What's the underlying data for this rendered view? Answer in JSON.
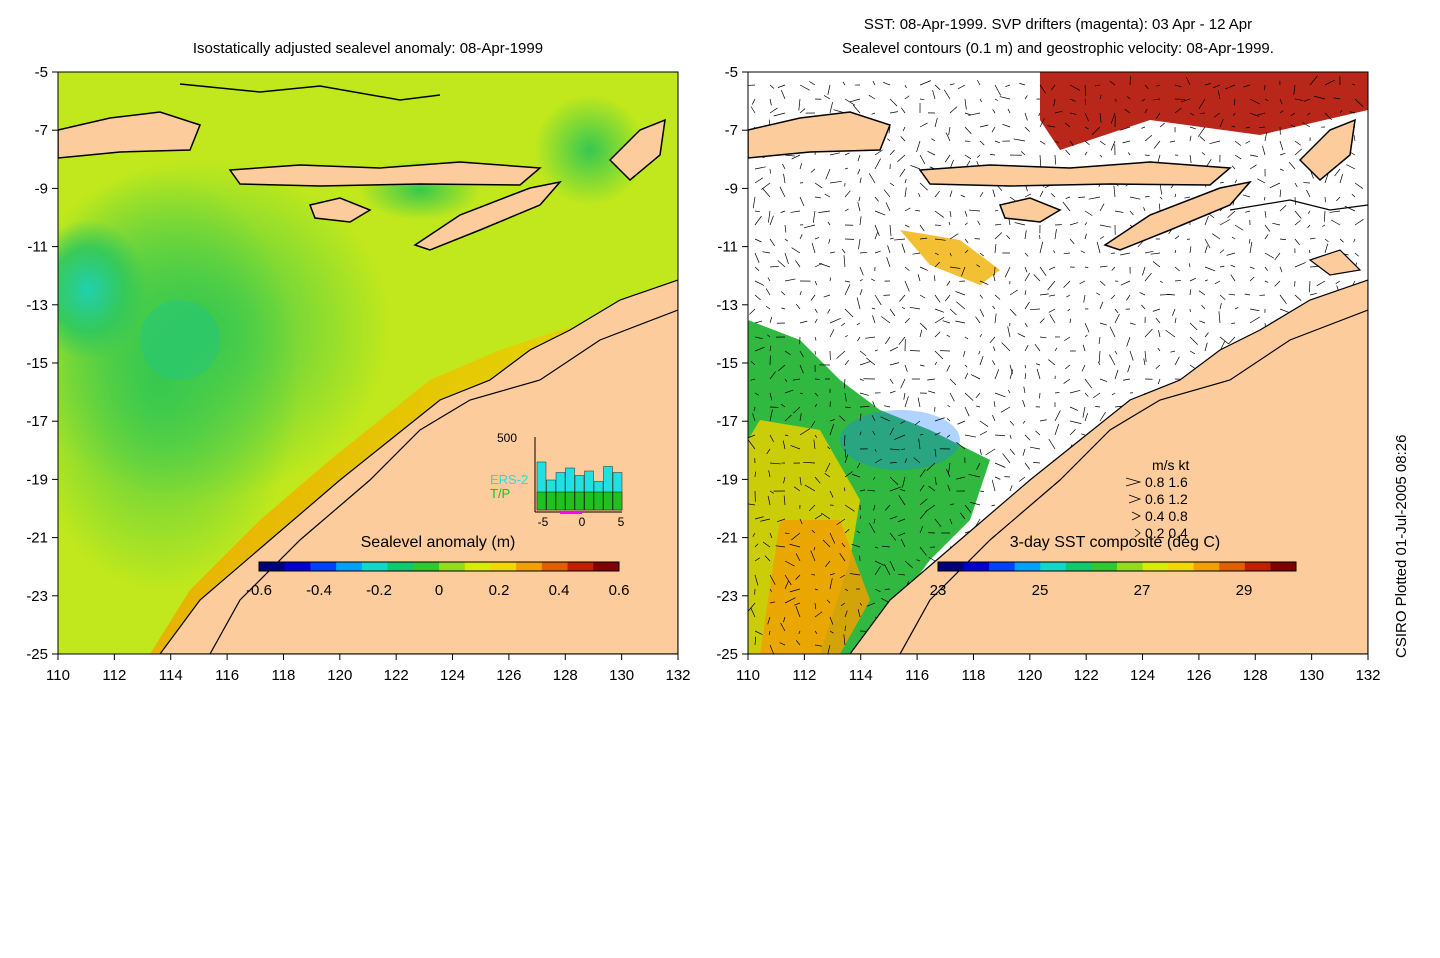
{
  "left_panel": {
    "title": "Isostatically adjusted sealevel anomaly: 08-Apr-1999",
    "colorbar": {
      "label": "Sealevel anomaly (m)",
      "ticks": [
        "-0.6",
        "-0.4",
        "-0.2",
        "0",
        "0.2",
        "0.4",
        "0.6"
      ],
      "colors": [
        "#00007a",
        "#0000d0",
        "#0040ff",
        "#00a0ff",
        "#10d8c8",
        "#10c870",
        "#30c830",
        "#90dc20",
        "#d8ec00",
        "#f0d800",
        "#f0a000",
        "#e06000",
        "#c02000",
        "#800000"
      ]
    },
    "inset": {
      "ymax_label": "500",
      "x_ticks": [
        "-5",
        "0",
        "5"
      ],
      "legend_ers2": "ERS-2",
      "legend_tp": "T/P",
      "ers2_color": "#20e0e0",
      "tp_color": "#20c020",
      "ers2_counts": [
        320,
        200,
        250,
        280,
        230,
        260,
        190,
        290,
        250
      ],
      "tp_counts": [
        120,
        120,
        120,
        120,
        120,
        120,
        120,
        120,
        120
      ]
    }
  },
  "right_panel": {
    "title_line1": "SST: 08-Apr-1999. SVP drifters (magenta): 03 Apr - 12 Apr",
    "title_line2": "Sealevel contours (0.1 m) and geostrophic velocity: 08-Apr-1999.",
    "colorbar": {
      "label": "3-day SST composite (deg C)",
      "ticks": [
        "23",
        "25",
        "27",
        "29"
      ],
      "colors": [
        "#00007a",
        "#0000d0",
        "#0040ff",
        "#00a0ff",
        "#10d8c8",
        "#10c870",
        "#30c830",
        "#90dc20",
        "#d8ec00",
        "#f0d800",
        "#f0a000",
        "#e06000",
        "#c02000",
        "#800000"
      ]
    },
    "speed_legend": {
      "header": "m/s  kt",
      "rows": [
        "0.8  1.6",
        "0.6  1.2",
        "0.4  0.8",
        "0.2  0.4"
      ]
    }
  },
  "axes": {
    "x_ticks": [
      "110",
      "112",
      "114",
      "116",
      "118",
      "120",
      "122",
      "124",
      "126",
      "128",
      "130",
      "132"
    ],
    "y_ticks": [
      "-5",
      "-7",
      "-9",
      "-11",
      "-13",
      "-15",
      "-17",
      "-19",
      "-21",
      "-23",
      "-25"
    ],
    "xlim": [
      110,
      132
    ],
    "ylim": [
      -25,
      -5
    ]
  },
  "colors": {
    "land": "#fccc9c",
    "ocean_left_base": "#b8e61e",
    "ocean_left_low": "#3cc84c",
    "ocean_right_base": "#ffffff"
  },
  "credit": "CSIRO Plotted 01-Jul-2005 08:26"
}
